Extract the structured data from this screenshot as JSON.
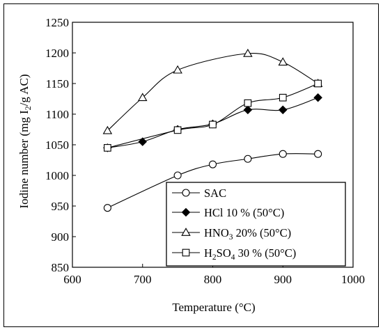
{
  "chart_data": {
    "type": "line",
    "xlabel": "Temperature (°C)",
    "ylabel_parts": [
      "Iodine number (mg  I",
      "2",
      "/g AC)"
    ],
    "xlim": [
      600,
      1000
    ],
    "ylim": [
      850,
      1250
    ],
    "xticks": [
      600,
      700,
      800,
      900,
      1000
    ],
    "yticks": [
      850,
      900,
      950,
      1000,
      1050,
      1100,
      1150,
      1200,
      1250
    ],
    "grid": false,
    "legend_position": "bottom-right",
    "series": [
      {
        "name": "SAC",
        "marker": "circle-open",
        "points": [
          [
            650,
            947
          ],
          [
            750,
            1000
          ],
          [
            800,
            1018
          ],
          [
            850,
            1027
          ],
          [
            900,
            1035
          ],
          [
            950,
            1035
          ]
        ]
      },
      {
        "name": "HCl 10 % (50°C)",
        "marker": "diamond-filled",
        "points": [
          [
            650,
            1045
          ],
          [
            700,
            1055
          ],
          [
            750,
            1075
          ],
          [
            800,
            1084
          ],
          [
            850,
            1107
          ],
          [
            900,
            1107
          ],
          [
            950,
            1127
          ]
        ]
      },
      {
        "name": "HNO3 20% (50°C)",
        "name_parts": [
          "HNO",
          "3",
          " 20% (50°C)"
        ],
        "marker": "triangle-open",
        "points": [
          [
            650,
            1073
          ],
          [
            700,
            1127
          ],
          [
            750,
            1172
          ],
          [
            850,
            1199
          ],
          [
            900,
            1185
          ],
          [
            950,
            1150
          ]
        ]
      },
      {
        "name": "H2SO4 30 % (50°C)",
        "name_parts": [
          "H",
          "2",
          "SO",
          "4",
          " 30 % (50°C)"
        ],
        "marker": "square-open",
        "points": [
          [
            650,
            1045
          ],
          [
            750,
            1074
          ],
          [
            800,
            1083
          ],
          [
            850,
            1118
          ],
          [
            900,
            1127
          ],
          [
            950,
            1150
          ]
        ]
      }
    ]
  }
}
